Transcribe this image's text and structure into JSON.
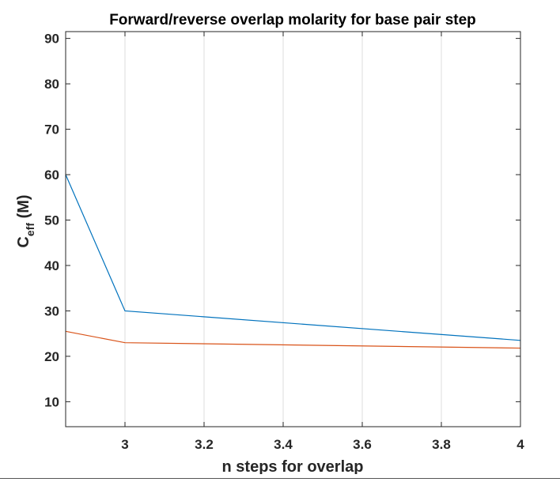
{
  "chart_data": {
    "type": "line",
    "title": "Forward/reverse overlap molarity for base pair step",
    "xlabel": "n steps for overlap",
    "ylabel_main": "C",
    "ylabel_sub": "eff",
    "ylabel_unit": "(M)",
    "xlim": [
      2.85,
      4.0
    ],
    "ylim": [
      4.5,
      91.5
    ],
    "xticks": [
      3,
      3.2,
      3.4,
      3.6,
      3.8,
      4
    ],
    "xtick_labels": [
      "3",
      "3.2",
      "3.4",
      "3.6",
      "3.8",
      "4"
    ],
    "yticks": [
      10,
      20,
      30,
      40,
      50,
      60,
      70,
      80,
      90
    ],
    "ytick_labels": [
      "10",
      "20",
      "30",
      "40",
      "50",
      "60",
      "70",
      "80",
      "90"
    ],
    "grid": "vertical",
    "series": [
      {
        "color": "#0072BD",
        "x": [
          2.85,
          3.0,
          4.0
        ],
        "y": [
          60.0,
          30.0,
          23.5
        ]
      },
      {
        "color": "#D95319",
        "x": [
          2.85,
          3.0,
          4.0
        ],
        "y": [
          25.5,
          23.0,
          21.8
        ]
      }
    ]
  }
}
